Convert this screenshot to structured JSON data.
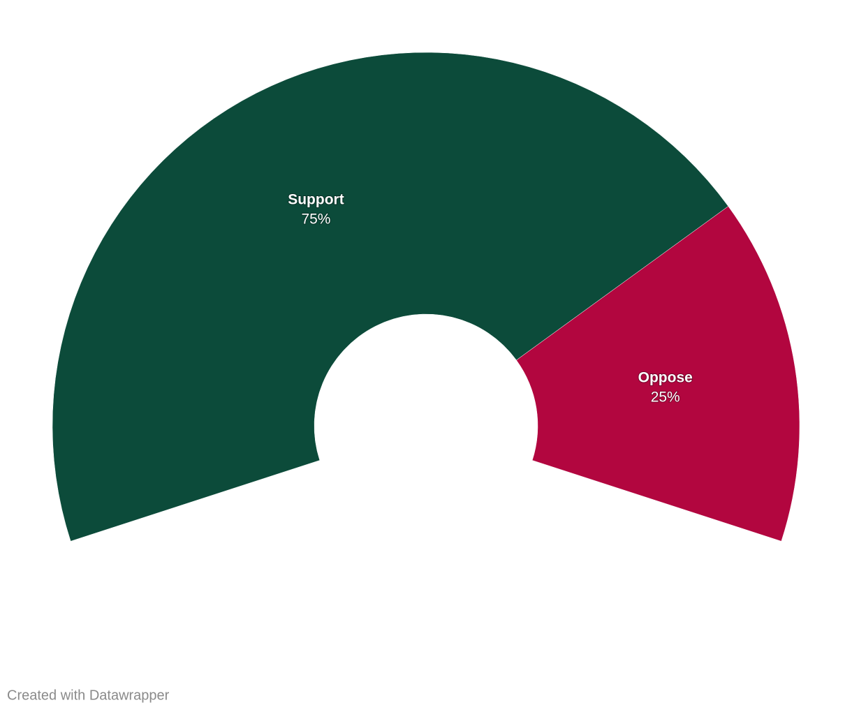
{
  "chart_data": {
    "type": "pie",
    "categories": [
      "Support",
      "Oppose"
    ],
    "values": [
      75,
      25
    ],
    "value_labels": [
      "75%",
      "25%"
    ],
    "colors": [
      "#0c4b3a",
      "#b2063f"
    ],
    "credit": "Created with Datawrapper"
  }
}
